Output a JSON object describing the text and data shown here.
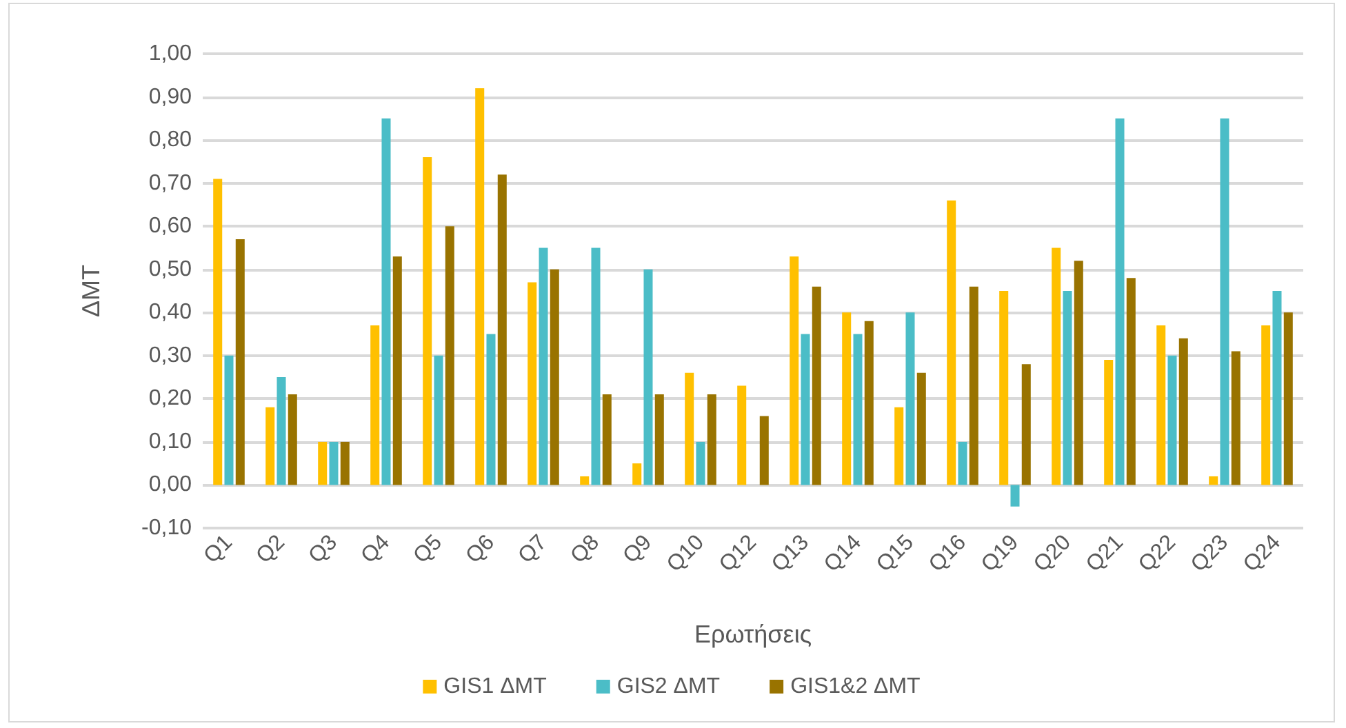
{
  "chart_data": {
    "type": "bar",
    "xlabel": "Ερωτήσεις",
    "ylabel": "ΔΜΤ",
    "categories": [
      "Q1",
      "Q2",
      "Q3",
      "Q4",
      "Q5",
      "Q6",
      "Q7",
      "Q8",
      "Q9",
      "Q10",
      "Q12",
      "Q13",
      "Q14",
      "Q15",
      "Q16",
      "Q19",
      "Q20",
      "Q21",
      "Q22",
      "Q23",
      "Q24"
    ],
    "series": [
      {
        "name": "GIS1 ΔΜΤ",
        "color": "#ffc000",
        "values": [
          0.71,
          0.18,
          0.1,
          0.37,
          0.76,
          0.92,
          0.47,
          0.02,
          0.05,
          0.26,
          0.23,
          0.53,
          0.4,
          0.18,
          0.66,
          0.45,
          0.55,
          0.29,
          0.37,
          0.02,
          0.37
        ]
      },
      {
        "name": "GIS2 ΔΜΤ",
        "color": "#4bbdc7",
        "values": [
          0.3,
          0.25,
          0.1,
          0.85,
          0.3,
          0.35,
          0.55,
          0.55,
          0.5,
          0.1,
          null,
          0.35,
          0.35,
          0.4,
          0.1,
          -0.05,
          0.45,
          0.85,
          0.3,
          0.85,
          0.45
        ]
      },
      {
        "name": "GIS1&2 ΔΜΤ",
        "color": "#997300",
        "values": [
          0.57,
          0.21,
          0.1,
          0.53,
          0.6,
          0.72,
          0.5,
          0.21,
          0.21,
          0.21,
          0.16,
          0.46,
          0.38,
          0.26,
          0.46,
          0.28,
          0.52,
          0.48,
          0.34,
          0.31,
          0.4
        ]
      }
    ],
    "ylim": [
      -0.1,
      1.0
    ],
    "yticks": [
      {
        "value": -0.1,
        "label": "-0,10"
      },
      {
        "value": 0,
        "label": "0,00"
      },
      {
        "value": 0.1,
        "label": "0,10"
      },
      {
        "value": 0.2,
        "label": "0,20"
      },
      {
        "value": 0.3,
        "label": "0,30"
      },
      {
        "value": 0.4,
        "label": "0,40"
      },
      {
        "value": 0.5,
        "label": "0,50"
      },
      {
        "value": 0.6,
        "label": "0,60"
      },
      {
        "value": 0.7,
        "label": "0,70"
      },
      {
        "value": 0.8,
        "label": "0,80"
      },
      {
        "value": 0.9,
        "label": "0,90"
      },
      {
        "value": 1.0,
        "label": "1,00"
      }
    ],
    "grid": "y",
    "legend": "bottom"
  }
}
